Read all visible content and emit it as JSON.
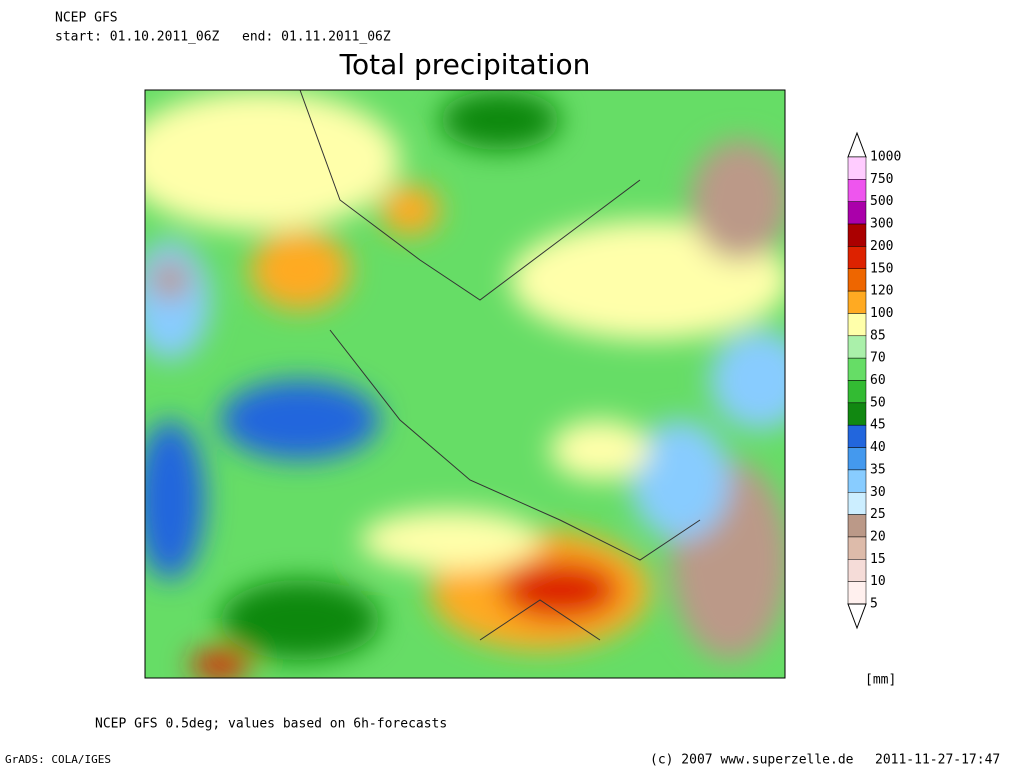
{
  "header": {
    "model": "NCEP GFS",
    "start": "start: 01.10.2011_06Z",
    "end": "end: 01.11.2011_06Z"
  },
  "title": "Total precipitation",
  "colorbar": {
    "levels": [
      "1000",
      "750",
      "500",
      "300",
      "200",
      "150",
      "120",
      "100",
      "85",
      "70",
      "60",
      "50",
      "45",
      "40",
      "35",
      "30",
      "25",
      "20",
      "15",
      "10",
      "5"
    ],
    "colors": [
      "#ffffff",
      "#ffccff",
      "#ee55ee",
      "#aa00aa",
      "#aa0000",
      "#dd2200",
      "#ee6600",
      "#ffaa22",
      "#ffffaa",
      "#aaf0aa",
      "#66dd66",
      "#33bb33",
      "#118811",
      "#2266dd",
      "#4499ee",
      "#88ccff",
      "#cceeff",
      "#bb9988",
      "#ddbbaa",
      "#f5dcd8",
      "#fff0ee",
      "#ffffff"
    ],
    "unit": "[mm]"
  },
  "footer": {
    "note": "NCEP GFS 0.5deg; values based on 6h-forecasts",
    "software": "GrADS: COLA/IGES",
    "copyright": "(c) 2007 www.superzelle.de",
    "timestamp": "2011-11-27-17:47"
  }
}
